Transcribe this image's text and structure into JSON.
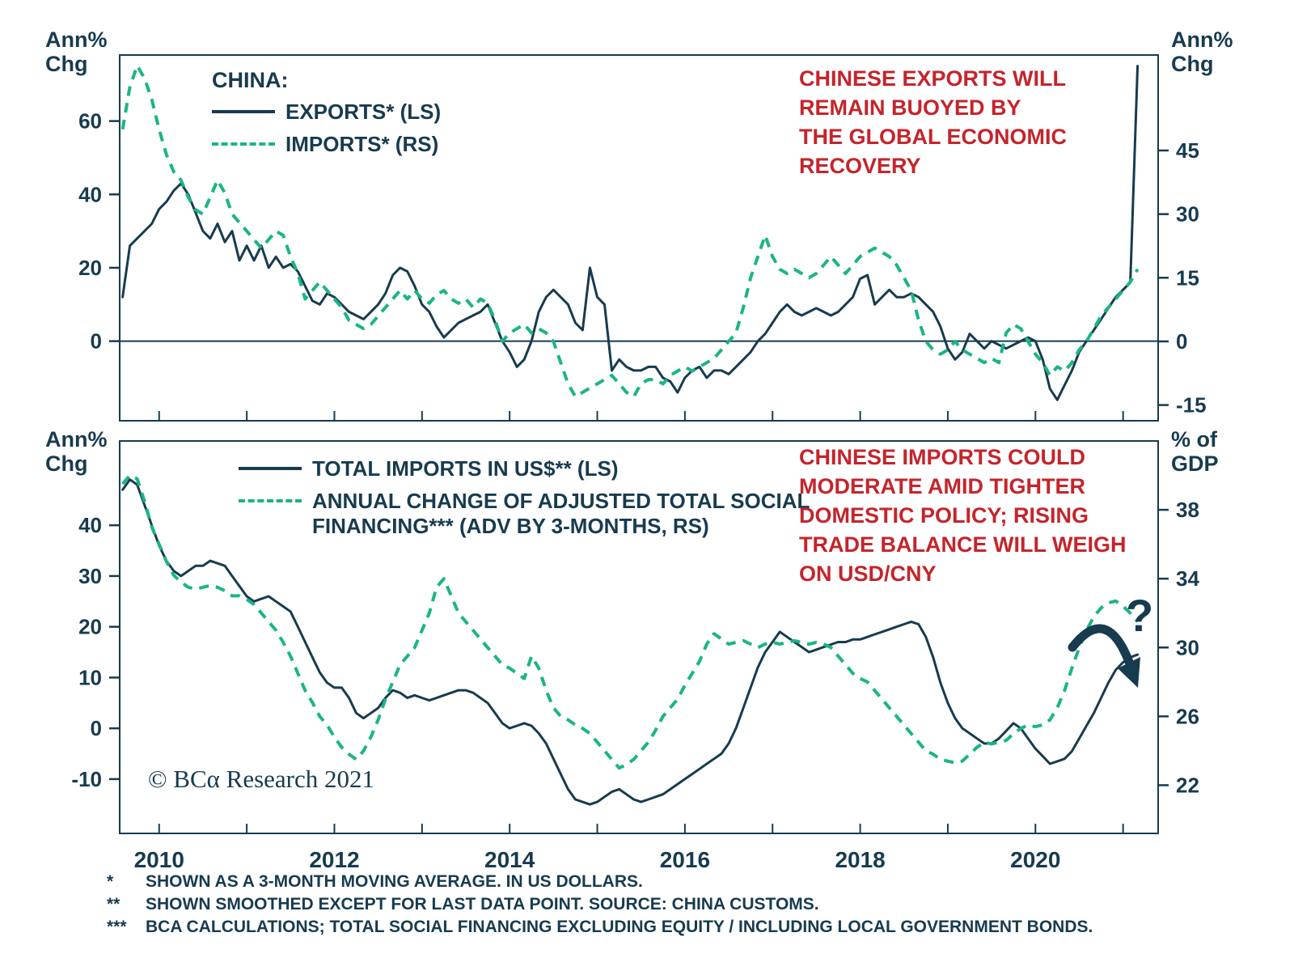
{
  "colors": {
    "dark": "#173B4F",
    "green": "#1BB585",
    "red": "#C5242B",
    "background": "#FFFFFF"
  },
  "copyright": "© BCα Research 2021",
  "footnotes": [
    {
      "marker": "*",
      "text": "SHOWN AS A 3-MONTH MOVING AVERAGE. IN US DOLLARS."
    },
    {
      "marker": "**",
      "text": "SHOWN SMOOTHED EXCEPT FOR LAST DATA POINT. SOURCE: CHINA CUSTOMS."
    },
    {
      "marker": "***",
      "text": "BCA CALCULATIONS; TOTAL SOCIAL FINANCING EXCLUDING EQUITY / INCLUDING LOCAL GOVERNMENT BONDS."
    }
  ],
  "chart_data": [
    {
      "type": "line",
      "panel": "top",
      "legend_title": "CHINA:",
      "left_axis": {
        "title": "Ann%\nChg",
        "ticks": [
          0,
          20,
          40,
          60
        ],
        "range": [
          -21.7,
          78
        ]
      },
      "right_axis": {
        "title": "Ann%\nChg",
        "ticks": [
          -15,
          0,
          15,
          30,
          45
        ],
        "range": [
          -18.7,
          67.5
        ]
      },
      "x_range": [
        2009.55,
        2021.4
      ],
      "zero_line": true,
      "annotation": "CHINESE EXPORTS WILL\nREMAIN BUOYED BY\nTHE GLOBAL ECONOMIC\nRECOVERY",
      "series": [
        {
          "id": "exports-line",
          "name": "EXPORTS* (LS)",
          "axis": "left",
          "style": "solid",
          "color": "#173B4F",
          "x_start": 2009.583,
          "x_step": 0.08333,
          "y": [
            12,
            26,
            28,
            30,
            32,
            36,
            38,
            41,
            43,
            40,
            35,
            30,
            28,
            32,
            27,
            30,
            22,
            26,
            22,
            26,
            20,
            23,
            20,
            21,
            19,
            15,
            11,
            10,
            13,
            12,
            10,
            8,
            7,
            6,
            8,
            10,
            13,
            18,
            20,
            19,
            15,
            10,
            8,
            4,
            1,
            3,
            5,
            6,
            7,
            8,
            10,
            5,
            0,
            -3,
            -7,
            -5,
            0,
            8,
            12,
            14,
            12,
            10,
            5,
            3,
            20,
            12,
            10,
            -8,
            -5,
            -7,
            -8,
            -8,
            -7,
            -7,
            -10,
            -11,
            -14,
            -10,
            -8,
            -7,
            -10,
            -8,
            -8,
            -9,
            -7,
            -5,
            -3,
            0,
            2,
            5,
            8,
            10,
            8,
            7,
            8,
            9,
            8,
            7,
            8,
            10,
            12,
            17,
            18,
            10,
            12,
            14,
            12,
            12,
            13,
            12,
            10,
            8,
            4,
            -2,
            -5,
            -3,
            2,
            0,
            -2,
            0,
            -1,
            -2,
            -1,
            0,
            1,
            0,
            -5,
            -13,
            -16,
            -12,
            -8,
            -3,
            0,
            3,
            6,
            9,
            12,
            14,
            16,
            75
          ]
        },
        {
          "id": "imports-line",
          "name": "IMPORTS* (RS)",
          "axis": "right",
          "style": "dashed",
          "color": "#1BB585",
          "x_start": 2009.583,
          "x_step": 0.08333,
          "y": [
            50,
            60,
            65,
            62,
            57,
            50,
            44,
            40,
            38,
            34,
            31,
            30,
            34,
            38,
            35,
            30,
            28,
            26,
            24,
            22,
            24,
            26,
            25,
            20,
            16,
            10,
            12,
            14,
            12,
            10,
            8,
            5,
            4,
            3,
            4,
            6,
            8,
            10,
            12,
            10,
            12,
            10,
            9,
            11,
            12,
            10,
            9,
            10,
            8,
            10,
            9,
            5,
            0,
            2,
            3,
            4,
            2,
            3,
            2,
            0,
            -5,
            -10,
            -13,
            -12,
            -11,
            -10,
            -9,
            -8,
            -10,
            -12,
            -13,
            -10,
            -9,
            -9,
            -10,
            -8,
            -7,
            -6,
            -7,
            -6,
            -5,
            -4,
            -2,
            0,
            2,
            8,
            15,
            20,
            25,
            20,
            17,
            16,
            17,
            16,
            15,
            16,
            18,
            20,
            18,
            16,
            18,
            20,
            21,
            22,
            21,
            20,
            18,
            15,
            12,
            5,
            0,
            -2,
            -3,
            -2,
            0,
            -2,
            -3,
            -4,
            -5,
            -4,
            -5,
            2,
            4,
            3,
            0,
            -3,
            -5,
            -8,
            -6,
            -7,
            -5,
            -2,
            0,
            3,
            6,
            8,
            10,
            12,
            14,
            17
          ]
        }
      ]
    },
    {
      "type": "line",
      "panel": "bottom",
      "left_axis": {
        "title": "Ann%\nChg",
        "ticks": [
          -10,
          0,
          10,
          20,
          30,
          40
        ],
        "range": [
          -20.7,
          56.6
        ]
      },
      "right_axis": {
        "title": "% of\nGDP",
        "ticks": [
          22,
          26,
          30,
          34,
          38
        ],
        "range": [
          19.2,
          42
        ]
      },
      "x_range": [
        2009.55,
        2021.4
      ],
      "x_axis_labels": [
        2010,
        2012,
        2014,
        2016,
        2018,
        2020
      ],
      "zero_line": false,
      "annotation": "CHINESE IMPORTS COULD\nMODERATE AMID TIGHTER\nDOMESTIC POLICY; RISING\nTRADE BALANCE WILL WEIGH\nON USD/CNY",
      "question_mark": "?",
      "series": [
        {
          "id": "total-imports-line",
          "name": "TOTAL IMPORTS IN US$** (LS)",
          "axis": "left",
          "style": "solid",
          "color": "#173B4F",
          "x_start": 2009.583,
          "x_step": 0.08333,
          "y": [
            47,
            49,
            48,
            44,
            40,
            36,
            33,
            31,
            30,
            31,
            32,
            32,
            33,
            32.5,
            32,
            30,
            28,
            26,
            25,
            25.5,
            26,
            25,
            24,
            23,
            20,
            17,
            14,
            11,
            9,
            8,
            8,
            6,
            3,
            2,
            3,
            4,
            6,
            7.5,
            7,
            6,
            6.5,
            6,
            5.5,
            6,
            6.5,
            7,
            7.5,
            7.5,
            7,
            6,
            5,
            3,
            1,
            0,
            0.5,
            1,
            0.5,
            -1,
            -3,
            -6,
            -9,
            -12,
            -14,
            -14.5,
            -15,
            -14.5,
            -13.5,
            -12.5,
            -12,
            -13,
            -14,
            -14.5,
            -14,
            -13.5,
            -13,
            -12,
            -11,
            -10,
            -9,
            -8,
            -7,
            -6,
            -5,
            -3,
            0,
            4,
            8,
            12,
            15,
            17,
            19,
            18,
            17,
            16,
            15,
            15.5,
            16,
            16.5,
            17,
            17,
            17.5,
            17.5,
            18,
            18.5,
            19,
            19.5,
            20,
            20.5,
            21,
            20.5,
            18,
            14,
            9,
            5,
            2,
            0,
            -1,
            -2,
            -3,
            -3,
            -2,
            -0.5,
            1,
            0,
            -2,
            -4,
            -5.5,
            -7,
            -6.5,
            -6,
            -4.5,
            -2,
            0.5,
            3,
            6,
            9,
            11.5,
            13,
            14,
            14.5
          ]
        },
        {
          "id": "tsf-line",
          "name": "ANNUAL CHANGE OF ADJUSTED TOTAL SOCIAL\nFINANCING*** (ADV BY 3-MONTHS, RS)",
          "axis": "right",
          "style": "dashed",
          "color": "#1BB585",
          "x_start": 2009.583,
          "x_step": 0.08333,
          "y": [
            39.5,
            40,
            39.8,
            38.5,
            37,
            36,
            35,
            34.2,
            33.8,
            33.5,
            33.4,
            33.5,
            33.6,
            33.5,
            33.3,
            33,
            33,
            32.8,
            32.5,
            32,
            31.5,
            31,
            30.3,
            29.5,
            28.5,
            27.5,
            26.8,
            26,
            25.5,
            24.8,
            24.2,
            23.8,
            23.5,
            24,
            24.8,
            25.8,
            27,
            28,
            29,
            29.5,
            30,
            31,
            32,
            33.5,
            34,
            33,
            32,
            31.5,
            31,
            30.5,
            30,
            29.5,
            29,
            28.8,
            28.5,
            28.2,
            29.5,
            28.8,
            27.5,
            26.5,
            26,
            25.8,
            25.5,
            25.3,
            25,
            24.5,
            24,
            23.5,
            23,
            23.2,
            23.5,
            24,
            24.5,
            25.2,
            26,
            26.5,
            27,
            27.8,
            28.5,
            29.2,
            30.2,
            30.8,
            30.5,
            30.2,
            30.3,
            30.4,
            30.2,
            30,
            30.2,
            30.3,
            30.2,
            30.3,
            30.4,
            30.3,
            30.2,
            30.3,
            30.2,
            30,
            29.5,
            29,
            28.5,
            28.2,
            28,
            27.5,
            27,
            26.5,
            26,
            25.5,
            25,
            24.5,
            24,
            23.8,
            23.5,
            23.4,
            23.3,
            23.4,
            23.8,
            24.2,
            24.5,
            24.4,
            24.5,
            24.6,
            25,
            25.3,
            25.5,
            25.4,
            25.5,
            25.8,
            26.5,
            27.5,
            28.8,
            30,
            31,
            31.8,
            32.3,
            32.6,
            32.7,
            32.4,
            32,
            31.5
          ]
        }
      ]
    }
  ]
}
